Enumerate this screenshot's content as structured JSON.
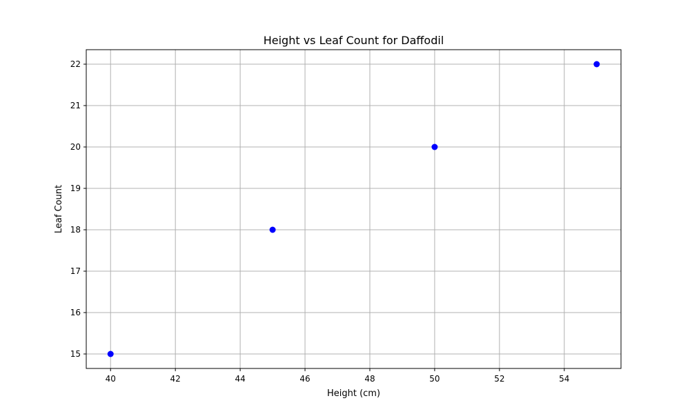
{
  "chart_data": {
    "type": "scatter",
    "title": "Height vs Leaf Count for Daffodil",
    "xlabel": "Height (cm)",
    "ylabel": "Leaf Count",
    "points": [
      {
        "x": 40,
        "y": 15
      },
      {
        "x": 45,
        "y": 18
      },
      {
        "x": 50,
        "y": 20
      },
      {
        "x": 55,
        "y": 22
      }
    ],
    "x_ticks": [
      40,
      42,
      44,
      46,
      48,
      50,
      52,
      54
    ],
    "y_ticks": [
      15,
      16,
      17,
      18,
      19,
      20,
      21,
      22
    ],
    "xlim": [
      39.25,
      55.75
    ],
    "ylim": [
      14.65,
      22.35
    ],
    "grid": true,
    "marker_color": "#0000ff"
  }
}
